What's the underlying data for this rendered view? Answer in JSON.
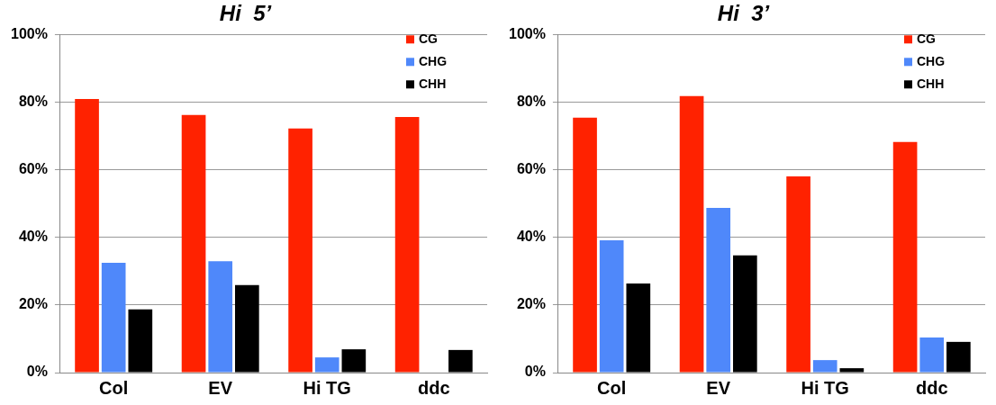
{
  "chart_data": [
    {
      "type": "bar",
      "title": "Hi  5’",
      "categories": [
        "Col",
        "EV",
        "Hi TG",
        "ddc"
      ],
      "series": [
        {
          "name": "CG",
          "color": "#ff2200",
          "values": [
            81,
            76.3,
            72.3,
            75.7
          ]
        },
        {
          "name": "CHG",
          "color": "#4f88fa",
          "values": [
            32.5,
            33,
            4.5,
            0
          ]
        },
        {
          "name": "CHH",
          "color": "#000000",
          "values": [
            18.7,
            25.9,
            6.9,
            6.7
          ]
        }
      ],
      "ylim": [
        0,
        100
      ],
      "yticks": [
        {
          "value": 0,
          "label": "0%"
        },
        {
          "value": 20,
          "label": "20%"
        },
        {
          "value": 40,
          "label": "40%"
        },
        {
          "value": 60,
          "label": "60%"
        },
        {
          "value": 80,
          "label": "80%"
        },
        {
          "value": 100,
          "label": "100%"
        }
      ],
      "grid": "y",
      "legend": "top right"
    },
    {
      "type": "bar",
      "title": "Hi  3’",
      "categories": [
        "Col",
        "EV",
        "Hi TG",
        "ddc"
      ],
      "series": [
        {
          "name": "CG",
          "color": "#ff2200",
          "values": [
            75.5,
            81.9,
            58.1,
            68.3
          ]
        },
        {
          "name": "CHG",
          "color": "#4f88fa",
          "values": [
            39.2,
            48.8,
            3.7,
            10.4
          ]
        },
        {
          "name": "CHH",
          "color": "#000000",
          "values": [
            26.4,
            34.7,
            1.3,
            9.1
          ]
        }
      ],
      "ylim": [
        0,
        100
      ],
      "yticks": [
        {
          "value": 0,
          "label": "0%"
        },
        {
          "value": 20,
          "label": "20%"
        },
        {
          "value": 40,
          "label": "40%"
        },
        {
          "value": 60,
          "label": "60%"
        },
        {
          "value": 80,
          "label": "80%"
        },
        {
          "value": 100,
          "label": "100%"
        }
      ],
      "grid": "y",
      "legend": "top right"
    }
  ]
}
